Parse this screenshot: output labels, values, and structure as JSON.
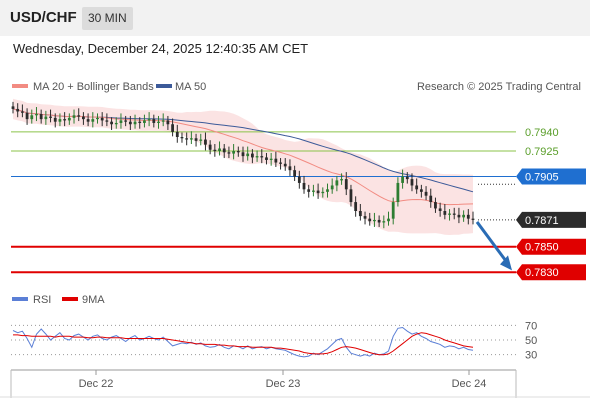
{
  "header": {
    "symbol": "USD/CHF",
    "interval": "30 MIN",
    "datetime": "Wednesday, December 24, 2025 12:40:35 AM CET"
  },
  "legend": {
    "ma20": "MA 20 + Bollinger Bands",
    "ma50": "MA 50",
    "credit": "Research © 2025 Trading Central",
    "rsi": "RSI",
    "ma9": "9MA"
  },
  "colors": {
    "ma20": "#f28b82",
    "ma50": "#3c5a99",
    "bands": "#fbe3e3",
    "resistance": "#8bc34a",
    "pivot": "#1f6fd0",
    "support": "#e00000",
    "arrow": "#2a6cb5",
    "candle": "#2b2b2b",
    "up_candle": "#2e7d32",
    "rsi": "#5b7fd6",
    "rsi_ma": "#e00000"
  },
  "chart_data": [
    {
      "type": "candlestick",
      "title": "USD/CHF",
      "x_ticks": [
        "Dec 22",
        "Dec 23",
        "Dec 24"
      ],
      "levels": [
        {
          "label": "0.7940",
          "value": 0.794,
          "kind": "resistance"
        },
        {
          "label": "0.7925",
          "value": 0.7925,
          "kind": "resistance"
        },
        {
          "label": "0.7905",
          "value": 0.7905,
          "kind": "pivot"
        },
        {
          "label": "0.7871",
          "value": 0.7871,
          "kind": "current"
        },
        {
          "label": "0.7850",
          "value": 0.785,
          "kind": "support"
        },
        {
          "label": "0.7830",
          "value": 0.783,
          "kind": "support"
        }
      ],
      "ylim": [
        0.782,
        0.7965
      ],
      "forecast_arrow": {
        "from": 0.7871,
        "to": 0.7833
      },
      "close": [
        0.7958,
        0.7956,
        0.7955,
        0.795,
        0.7953,
        0.7954,
        0.795,
        0.7952,
        0.7951,
        0.7948,
        0.795,
        0.7949,
        0.7951,
        0.7953,
        0.7952,
        0.795,
        0.7948,
        0.795,
        0.7951,
        0.7949,
        0.7948,
        0.7946,
        0.7947,
        0.7949,
        0.7948,
        0.7946,
        0.7948,
        0.7947,
        0.7949,
        0.795,
        0.7947,
        0.7948,
        0.7949,
        0.7946,
        0.794,
        0.7936,
        0.7935,
        0.7934,
        0.7935,
        0.7933,
        0.7934,
        0.793,
        0.7926,
        0.7925,
        0.7927,
        0.7924,
        0.7923,
        0.7925,
        0.7924,
        0.7921,
        0.7923,
        0.792,
        0.7921,
        0.792,
        0.7918,
        0.7919,
        0.7916,
        0.7915,
        0.7913,
        0.791,
        0.7905,
        0.79,
        0.7895,
        0.7893,
        0.7894,
        0.7892,
        0.7893,
        0.7895,
        0.7898,
        0.7902,
        0.7903,
        0.7895,
        0.7885,
        0.7878,
        0.7874,
        0.7872,
        0.787,
        0.7871,
        0.7869,
        0.787,
        0.7872,
        0.7885,
        0.79,
        0.7905,
        0.7903,
        0.7898,
        0.7895,
        0.7893,
        0.789,
        0.7885,
        0.788,
        0.7878,
        0.7875,
        0.7876,
        0.7875,
        0.7873,
        0.7875,
        0.7872,
        0.7871
      ]
    },
    {
      "type": "line",
      "title": "RSI",
      "series": [
        {
          "name": "RSI",
          "values": [
            63,
            60,
            62,
            52,
            40,
            58,
            65,
            58,
            50,
            55,
            60,
            52,
            50,
            56,
            58,
            54,
            50,
            55,
            57,
            52,
            50,
            54,
            56,
            52,
            48,
            53,
            56,
            50,
            52,
            55,
            52,
            50,
            54,
            48,
            42,
            44,
            46,
            45,
            47,
            44,
            46,
            42,
            40,
            41,
            44,
            40,
            38,
            42,
            41,
            38,
            42,
            38,
            40,
            41,
            38,
            40,
            38,
            37,
            36,
            33,
            30,
            28,
            27,
            28,
            32,
            30,
            34,
            38,
            44,
            50,
            52,
            40,
            32,
            30,
            28,
            30,
            28,
            32,
            30,
            31,
            35,
            55,
            66,
            67,
            62,
            58,
            60,
            55,
            52,
            48,
            46,
            44,
            40,
            42,
            41,
            38,
            40,
            37,
            36
          ]
        },
        {
          "name": "9MA",
          "values": [
            57,
            57,
            56,
            56,
            55,
            55,
            55,
            55,
            55,
            54,
            55,
            55,
            55,
            54,
            54,
            54,
            53,
            53,
            54,
            54,
            53,
            53,
            53,
            53,
            52,
            52,
            52,
            52,
            52,
            52,
            52,
            52,
            52,
            51,
            50,
            49,
            48,
            47,
            46,
            45,
            45,
            44,
            44,
            44,
            43,
            43,
            42,
            42,
            41,
            41,
            41,
            40,
            40,
            40,
            40,
            40,
            39,
            39,
            38,
            37,
            36,
            35,
            33,
            32,
            31,
            31,
            31,
            32,
            34,
            37,
            40,
            41,
            40,
            39,
            37,
            35,
            33,
            31,
            30,
            30,
            31,
            35,
            40,
            45,
            50,
            55,
            58,
            60,
            59,
            57,
            55,
            53,
            50,
            48,
            46,
            44,
            42,
            41,
            40
          ]
        }
      ],
      "y_ticks": [
        "70",
        "50",
        "30"
      ],
      "ylim": [
        20,
        80
      ]
    }
  ]
}
